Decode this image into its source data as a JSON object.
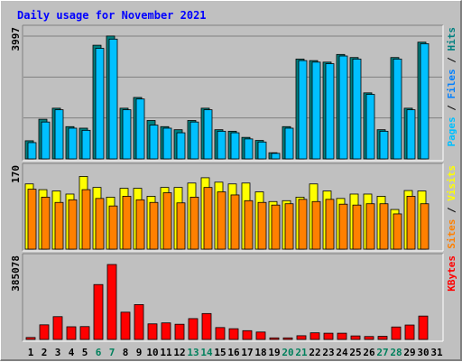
{
  "title": "Daily usage for November 2021",
  "colors": {
    "title": "#0000ff",
    "frame_bg": "#c0c0c0",
    "plot_bg": "#c0c0c0",
    "pages": "#00c0ff",
    "files": "#0080ff",
    "hits": "#008080",
    "visits": "#ffff00",
    "sites": "#ff8000",
    "kbytes": "#ff0000",
    "weekend_label": "#00805c",
    "weekday_label": "#000000"
  },
  "chart_data": {
    "type": "bar",
    "categories": [
      "1",
      "2",
      "3",
      "4",
      "5",
      "6",
      "7",
      "8",
      "9",
      "10",
      "11",
      "12",
      "13",
      "14",
      "15",
      "16",
      "17",
      "18",
      "19",
      "20",
      "21",
      "22",
      "23",
      "24",
      "25",
      "26",
      "27",
      "28",
      "29",
      "30",
      "31"
    ],
    "weekend_days": [
      "6",
      "7",
      "13",
      "14",
      "20",
      "21",
      "27",
      "28"
    ],
    "panels": [
      {
        "id": "requests",
        "ymax_label": "3997",
        "ymax": 3997,
        "right_label_parts": [
          {
            "text": "Pages",
            "color": "#00c0ff"
          },
          {
            "text": " / ",
            "color": "#000000"
          },
          {
            "text": "Files",
            "color": "#0080ff"
          },
          {
            "text": " / ",
            "color": "#000000"
          },
          {
            "text": "Hits",
            "color": "#008080"
          }
        ],
        "series": [
          {
            "name": "Hits",
            "color": "#008080",
            "values": [
              590,
              1290,
              1650,
              1050,
              1000,
              3700,
              4000,
              1650,
              2000,
              1250,
              1050,
              950,
              1250,
              1650,
              950,
              900,
              700,
              600,
              200,
              1050,
              3250,
              3200,
              3150,
              3400,
              3300,
              2150,
              950,
              3300,
              1650,
              3800,
              null
            ]
          },
          {
            "name": "Files",
            "color": "#00c0ff",
            "values": [
              530,
              1200,
              1600,
              1000,
              930,
              3600,
              3900,
              1600,
              1950,
              1100,
              1000,
              850,
              1200,
              1600,
              900,
              850,
              650,
              550,
              180,
              1000,
              3200,
              3150,
              3100,
              3350,
              3250,
              2100,
              900,
              3250,
              1600,
              3750,
              null
            ]
          }
        ]
      },
      {
        "id": "visits",
        "ymax_label": "170",
        "ymax": 170,
        "right_label_parts": [
          {
            "text": "Sites",
            "color": "#ff8000"
          },
          {
            "text": " / ",
            "color": "#000000"
          },
          {
            "text": "Visits",
            "color": "#ffff00"
          }
        ],
        "series": [
          {
            "name": "Visits",
            "color": "#ffff00",
            "values": [
              148,
              135,
              132,
              125,
              165,
              140,
              118,
              138,
              138,
              120,
              140,
              140,
              150,
              162,
              152,
              148,
              150,
              130,
              108,
              110,
              118,
              148,
              132,
              115,
              125,
              125,
              120,
              90,
              133,
              132,
              null
            ]
          },
          {
            "name": "Sites",
            "color": "#ff8000",
            "values": [
              136,
              118,
              106,
              112,
              135,
              115,
              98,
              120,
              112,
              106,
              128,
              105,
              118,
              140,
              130,
              123,
              110,
              106,
              100,
              103,
              113,
              108,
              113,
              102,
              100,
              103,
              103,
              80,
              120,
              103,
              null
            ]
          }
        ]
      },
      {
        "id": "kbytes",
        "ymax_label": "385078",
        "ymax": 385078,
        "right_label_parts": [
          {
            "text": "KBytes",
            "color": "#ff0000"
          }
        ],
        "series": [
          {
            "name": "KBytes",
            "color": "#ff0000",
            "values": [
              10000,
              75000,
              117000,
              65000,
              66000,
              282000,
              385078,
              140000,
              179000,
              80000,
              85000,
              78000,
              107000,
              133000,
              61000,
              55000,
              45000,
              38000,
              8000,
              8000,
              19000,
              34000,
              32000,
              32000,
              18000,
              15000,
              16000,
              64000,
              74000,
              120000,
              null
            ]
          }
        ]
      }
    ]
  }
}
